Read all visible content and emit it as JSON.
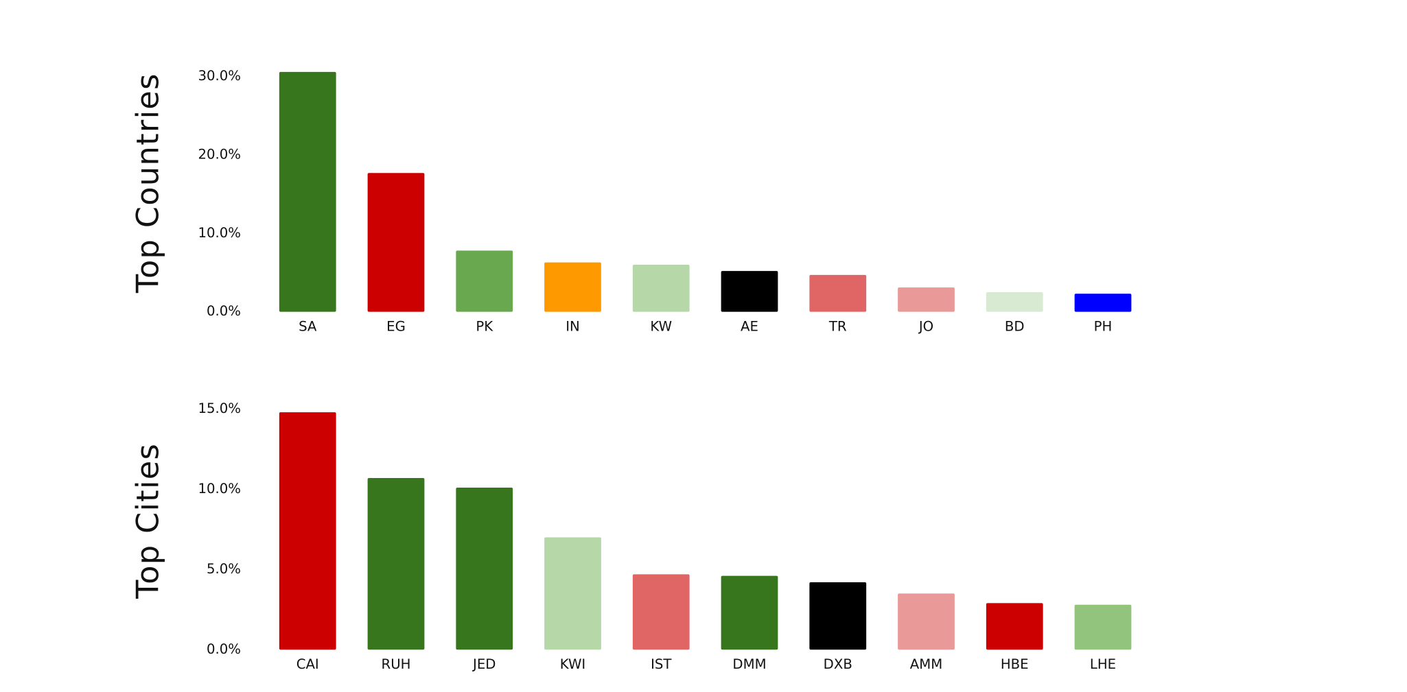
{
  "chart_data": [
    {
      "type": "bar",
      "ylabel": "Top Countries",
      "categories": [
        "SA",
        "EG",
        "PK",
        "IN",
        "KW",
        "AE",
        "TR",
        "JO",
        "BD",
        "PH"
      ],
      "values": [
        30.6,
        17.7,
        7.8,
        6.3,
        6.0,
        5.2,
        4.7,
        3.1,
        2.5,
        2.3
      ],
      "colors": [
        "#38761d",
        "#cc0000",
        "#6aa84f",
        "#ff9900",
        "#b6d7a8",
        "#000000",
        "#e06666",
        "#ea9999",
        "#d9ead3",
        "#0000ff"
      ],
      "ylim": [
        0,
        31
      ],
      "yticks": [
        {
          "value": 0,
          "label": "0.0%"
        },
        {
          "value": 10,
          "label": "10.0%"
        },
        {
          "value": 20,
          "label": "20.0%"
        },
        {
          "value": 30,
          "label": "30.0%"
        }
      ],
      "grid": false
    },
    {
      "type": "bar",
      "ylabel": "Top Cities",
      "categories": [
        "CAI",
        "RUH",
        "JED",
        "KWI",
        "IST",
        "DMM",
        "DXB",
        "AMM",
        "HBE",
        "LHE"
      ],
      "values": [
        14.8,
        10.7,
        10.1,
        7.0,
        4.7,
        4.6,
        4.2,
        3.5,
        2.9,
        2.8
      ],
      "colors": [
        "#cc0000",
        "#38761d",
        "#38761d",
        "#b6d7a8",
        "#e06666",
        "#38761d",
        "#000000",
        "#ea9999",
        "#cc0000",
        "#93c47d"
      ],
      "ylim": [
        0,
        15.5
      ],
      "yticks": [
        {
          "value": 0,
          "label": "0.0%"
        },
        {
          "value": 5,
          "label": "5.0%"
        },
        {
          "value": 10,
          "label": "10.0%"
        },
        {
          "value": 15,
          "label": "15.0%"
        }
      ],
      "grid": false
    }
  ]
}
